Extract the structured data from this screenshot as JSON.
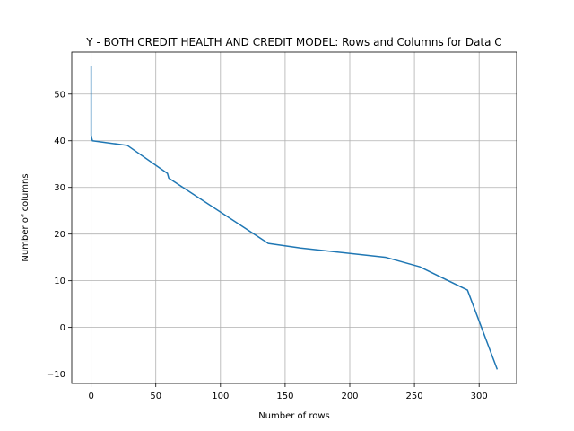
{
  "chart_data": {
    "type": "line",
    "title": "Y - BOTH CREDIT HEALTH AND CREDIT MODEL: Rows and Columns for Data C",
    "xlabel": "Number of rows",
    "ylabel": "Number of columns",
    "xlim": [
      -15,
      329
    ],
    "ylim": [
      -12,
      59
    ],
    "xticks": [
      0,
      50,
      100,
      150,
      200,
      250,
      300
    ],
    "yticks": [
      -10,
      0,
      10,
      20,
      30,
      40,
      50
    ],
    "grid": true,
    "series": [
      {
        "color": "#1f77b4",
        "x": [
          0,
          0,
          0,
          0,
          0,
          0,
          1,
          28,
          59,
          60,
          137,
          162,
          228,
          254,
          291,
          314
        ],
        "y": [
          56,
          50,
          45,
          43,
          42,
          41,
          40,
          39,
          33,
          32,
          18,
          17,
          15,
          13,
          8,
          -9
        ]
      }
    ]
  }
}
